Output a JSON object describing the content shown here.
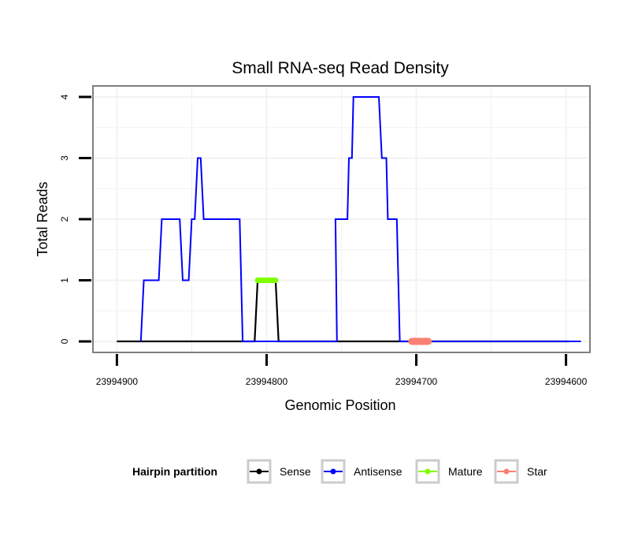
{
  "chart_data": {
    "type": "line",
    "title": "Small RNA-seq Read Density",
    "xlabel": "Genomic Position",
    "ylabel": "Total Reads",
    "xlim": [
      23994916,
      23994584
    ],
    "ylim": [
      -0.18,
      4.18
    ],
    "x_reversed": true,
    "x_ticks": [
      23994900,
      23994800,
      23994700,
      23994600
    ],
    "x_tick_labels": [
      "23994900",
      "23994800",
      "23994700",
      "23994600"
    ],
    "y_ticks": [
      0,
      1,
      2,
      3,
      4
    ],
    "y_tick_labels": [
      "0",
      "1",
      "2",
      "3",
      "4"
    ],
    "grid": true,
    "legend": {
      "title": "Hairpin partition",
      "position": "bottom",
      "items": [
        {
          "label": "Sense",
          "color": "#000000"
        },
        {
          "label": "Antisense",
          "color": "#0000ff"
        },
        {
          "label": "Mature",
          "color": "#7fff00"
        },
        {
          "label": "Star",
          "color": "#fa8072"
        }
      ]
    },
    "series": [
      {
        "name": "Sense",
        "color": "#000000",
        "width": 2.2,
        "x": [
          23994900,
          23994808,
          23994806,
          23994794,
          23994792,
          23994598
        ],
        "y": [
          0,
          0,
          1,
          1,
          0,
          0
        ]
      },
      {
        "name": "Antisense",
        "color": "#0000ff",
        "width": 2,
        "x": [
          23994884,
          23994882,
          23994872,
          23994870,
          23994858,
          23994856,
          23994852,
          23994850,
          23994848,
          23994846,
          23994844,
          23994842,
          23994840,
          23994838,
          23994818,
          23994816,
          23994795,
          23994785,
          23994775,
          23994753,
          23994754,
          23994746,
          23994745,
          23994743,
          23994742,
          23994733,
          23994732,
          23994725,
          23994723,
          23994720,
          23994719,
          23994713,
          23994711,
          23994706,
          23994704,
          23994590
        ],
        "y": [
          0,
          1,
          1,
          2,
          2,
          1,
          1,
          2,
          2,
          3,
          3,
          2,
          2,
          2,
          2,
          0,
          0,
          0,
          0,
          0,
          2,
          2,
          3,
          3,
          4,
          4,
          4,
          4,
          3,
          3,
          2,
          2,
          0,
          0,
          0,
          0
        ]
      },
      {
        "name": "Mature",
        "color": "#7fff00",
        "width": 7,
        "x": [
          23994806,
          23994794
        ],
        "y": [
          1,
          1
        ]
      },
      {
        "name": "Star",
        "color": "#fa8072",
        "width": 9,
        "x": [
          23994703,
          23994692
        ],
        "y": [
          0,
          0
        ]
      }
    ]
  }
}
